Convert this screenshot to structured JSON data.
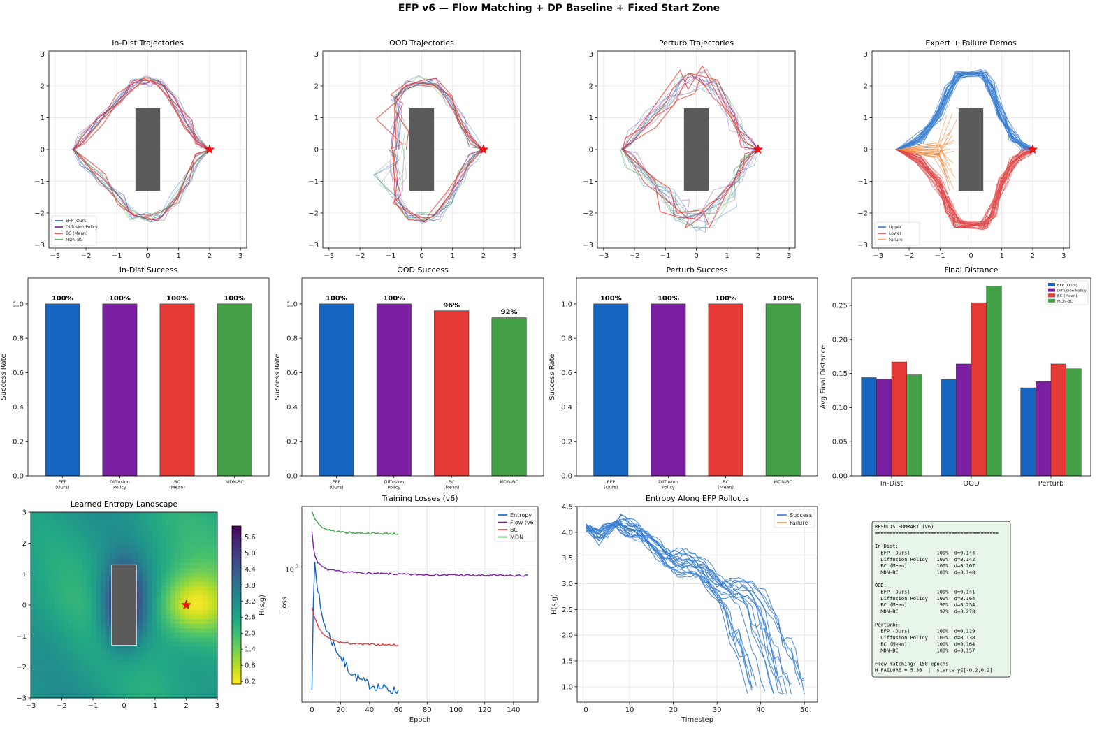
{
  "suptitle": "EFP v6 — Flow Matching + DP Baseline + Fixed Start Zone",
  "colors": {
    "efp": "#1565c0",
    "dp": "#7b1fa2",
    "bc": "#e53935",
    "mdn": "#43a047",
    "upper": "#3a7fd0",
    "lower": "#e04848",
    "failure": "#f28b40",
    "obstacle": "#5a5a5a",
    "goal": "#ff1010",
    "summary_bg": "#e8f5e9"
  },
  "chart_data": [
    {
      "id": "indist-traj",
      "type": "scatter",
      "title": "In-Dist Trajectories",
      "xlim": [
        -3.2,
        3.2
      ],
      "ylim": [
        -3.1,
        3.1
      ],
      "xticks": [
        -3,
        -2,
        -1,
        0,
        1,
        2,
        3
      ],
      "yticks": [
        -3,
        -2,
        -1,
        0,
        1,
        2,
        3
      ],
      "grid": true,
      "obstacle": {
        "x": [
          -0.4,
          0.4
        ],
        "y": [
          -1.3,
          1.3
        ]
      },
      "goal": [
        2.0,
        0.0
      ],
      "start_x": -2.4,
      "legend": [
        "EFP (Ours)",
        "Diffusion Policy",
        "BC (Mean)",
        "MDN-BC"
      ],
      "legend_pos": "lower-left"
    },
    {
      "id": "ood-traj",
      "type": "scatter",
      "title": "OOD Trajectories",
      "xlim": [
        -3.2,
        3.2
      ],
      "ylim": [
        -3.1,
        3.1
      ],
      "xticks": [
        -3,
        -2,
        -1,
        0,
        1,
        2,
        3
      ],
      "yticks": [
        -3,
        -2,
        -1,
        0,
        1,
        2,
        3
      ],
      "grid": true,
      "obstacle": {
        "x": [
          -0.4,
          0.4
        ],
        "y": [
          -1.3,
          1.3
        ]
      },
      "goal": [
        2.0,
        0.0
      ],
      "start_x": -0.8
    },
    {
      "id": "perturb-traj",
      "type": "scatter",
      "title": "Perturb Trajectories",
      "xlim": [
        -3.2,
        3.2
      ],
      "ylim": [
        -3.1,
        3.1
      ],
      "xticks": [
        -3,
        -2,
        -1,
        0,
        1,
        2,
        3
      ],
      "yticks": [
        -3,
        -2,
        -1,
        0,
        1,
        2,
        3
      ],
      "grid": true,
      "obstacle": {
        "x": [
          -0.4,
          0.4
        ],
        "y": [
          -1.3,
          1.3
        ]
      },
      "goal": [
        2.0,
        0.0
      ],
      "start_x": -2.4
    },
    {
      "id": "demos",
      "type": "scatter",
      "title": "Expert + Failure Demos",
      "xlim": [
        -3.2,
        3.2
      ],
      "ylim": [
        -3.1,
        3.1
      ],
      "xticks": [
        -3,
        -2,
        -1,
        0,
        1,
        2,
        3
      ],
      "yticks": [
        -3,
        -2,
        -1,
        0,
        1,
        2,
        3
      ],
      "grid": true,
      "obstacle": {
        "x": [
          -0.4,
          0.4
        ],
        "y": [
          -1.3,
          1.3
        ]
      },
      "goal": [
        2.0,
        0.0
      ],
      "legend": [
        "Upper",
        "Lower",
        "Failure"
      ],
      "legend_pos": "lower-left"
    },
    {
      "id": "indist-success",
      "type": "bar",
      "title": "In-Dist Success",
      "ylabel": "Success Rate",
      "ylim": [
        0,
        1.15
      ],
      "yticks": [
        0.0,
        0.2,
        0.4,
        0.6,
        0.8,
        1.0
      ],
      "categories": [
        [
          "EFP",
          "(Ours)"
        ],
        [
          "Diffusion",
          "Policy"
        ],
        [
          "BC",
          "(Mean)"
        ],
        [
          "MDN-BC"
        ]
      ],
      "values": [
        1.0,
        1.0,
        1.0,
        1.0
      ],
      "labels": [
        "100%",
        "100%",
        "100%",
        "100%"
      ]
    },
    {
      "id": "ood-success",
      "type": "bar",
      "title": "OOD Success",
      "ylabel": "Success Rate",
      "ylim": [
        0,
        1.15
      ],
      "yticks": [
        0.0,
        0.2,
        0.4,
        0.6,
        0.8,
        1.0
      ],
      "categories": [
        [
          "EFP",
          "(Ours)"
        ],
        [
          "Diffusion",
          "Policy"
        ],
        [
          "BC",
          "(Mean)"
        ],
        [
          "MDN-BC"
        ]
      ],
      "values": [
        1.0,
        1.0,
        0.96,
        0.92
      ],
      "labels": [
        "100%",
        "100%",
        "96%",
        "92%"
      ]
    },
    {
      "id": "perturb-success",
      "type": "bar",
      "title": "Perturb Success",
      "ylabel": "Success Rate",
      "ylim": [
        0,
        1.15
      ],
      "yticks": [
        0.0,
        0.2,
        0.4,
        0.6,
        0.8,
        1.0
      ],
      "categories": [
        [
          "EFP",
          "(Ours)"
        ],
        [
          "Diffusion",
          "Policy"
        ],
        [
          "BC",
          "(Mean)"
        ],
        [
          "MDN-BC"
        ]
      ],
      "values": [
        1.0,
        1.0,
        1.0,
        1.0
      ],
      "labels": [
        "100%",
        "100%",
        "100%",
        "100%"
      ]
    },
    {
      "id": "final-distance",
      "type": "bar",
      "title": "Final Distance",
      "ylabel": "Avg Final Distance",
      "ylim": [
        0,
        0.29
      ],
      "yticks": [
        0.0,
        0.05,
        0.1,
        0.15,
        0.2,
        0.25
      ],
      "categories": [
        "In-Dist",
        "OOD",
        "Perturb"
      ],
      "series": [
        {
          "name": "EFP (Ours)",
          "values": [
            0.144,
            0.141,
            0.129
          ]
        },
        {
          "name": "Diffusion Policy",
          "values": [
            0.142,
            0.164,
            0.138
          ]
        },
        {
          "name": "BC (Mean)",
          "values": [
            0.167,
            0.254,
            0.164
          ]
        },
        {
          "name": "MDN-BC",
          "values": [
            0.148,
            0.278,
            0.157
          ]
        }
      ],
      "legend_pos": "top-right"
    },
    {
      "id": "entropy-landscape",
      "type": "heatmap",
      "title": "Learned Entropy Landscape",
      "xlim": [
        -3,
        3
      ],
      "ylim": [
        -3,
        3
      ],
      "xticks": [
        -3,
        -2,
        -1,
        0,
        1,
        2,
        3
      ],
      "yticks": [
        -3,
        -2,
        -1,
        0,
        1,
        2,
        3
      ],
      "colorbar_label": "H(s,g)",
      "colorbar_ticks": [
        0.2,
        0.8,
        1.4,
        2.0,
        2.6,
        3.2,
        3.8,
        4.4,
        5.0,
        5.6
      ],
      "colorbar_range": [
        0.1,
        6.0
      ],
      "obstacle": {
        "x": [
          -0.4,
          0.4
        ],
        "y": [
          -1.3,
          1.3
        ]
      },
      "goal": [
        2.0,
        0.0
      ]
    },
    {
      "id": "training-losses",
      "type": "line",
      "title": "Training Losses (v6)",
      "xlabel": "Epoch",
      "ylabel": "Loss",
      "xlim": [
        -7,
        157
      ],
      "log_y": true,
      "ylim": [
        0.17,
        2.3
      ],
      "xticks": [
        0,
        20,
        40,
        60,
        80,
        100,
        120,
        140
      ],
      "ytick_label": "10",
      "ytick_sup": "0",
      "legend_pos": "top-right",
      "series": [
        {
          "name": "Entropy",
          "x": [
            0,
            2,
            4,
            6,
            8,
            10,
            14,
            18,
            22,
            26,
            30,
            35,
            40,
            45,
            50,
            55,
            60
          ],
          "y": [
            0.2,
            1.1,
            0.78,
            0.58,
            0.5,
            0.45,
            0.38,
            0.33,
            0.29,
            0.26,
            0.24,
            0.225,
            0.215,
            0.21,
            0.205,
            0.2,
            0.198
          ]
        },
        {
          "name": "Flow (v6)",
          "x": [
            0,
            1,
            2,
            4,
            6,
            8,
            10,
            15,
            20,
            30,
            40,
            50,
            60,
            70,
            80,
            90,
            100,
            110,
            120,
            130,
            140,
            150
          ],
          "y": [
            1.65,
            1.35,
            1.2,
            1.1,
            1.05,
            1.02,
            1.0,
            0.98,
            0.965,
            0.955,
            0.945,
            0.94,
            0.935,
            0.93,
            0.93,
            0.925,
            0.925,
            0.92,
            0.92,
            0.92,
            0.918,
            0.917
          ]
        },
        {
          "name": "BC",
          "x": [
            0,
            2,
            4,
            6,
            8,
            10,
            14,
            18,
            22,
            26,
            30,
            35,
            40,
            45,
            50,
            55,
            60
          ],
          "y": [
            0.6,
            0.52,
            0.47,
            0.44,
            0.42,
            0.405,
            0.39,
            0.38,
            0.375,
            0.372,
            0.37,
            0.368,
            0.367,
            0.366,
            0.365,
            0.364,
            0.364
          ]
        },
        {
          "name": "MDN",
          "x": [
            0,
            2,
            4,
            6,
            8,
            10,
            15,
            20,
            25,
            30,
            35,
            40,
            45,
            50,
            55,
            60
          ],
          "y": [
            2.15,
            1.95,
            1.85,
            1.78,
            1.73,
            1.7,
            1.66,
            1.64,
            1.63,
            1.62,
            1.615,
            1.61,
            1.607,
            1.605,
            1.603,
            1.6
          ]
        }
      ]
    },
    {
      "id": "entropy-rollouts",
      "type": "line",
      "title": "Entropy Along EFP Rollouts",
      "xlabel": "Timestep",
      "ylabel": "H(s,g)",
      "xlim": [
        -2,
        53
      ],
      "ylim": [
        0.7,
        4.5
      ],
      "xticks": [
        0,
        10,
        20,
        30,
        40,
        50
      ],
      "yticks": [
        1.0,
        1.5,
        2.0,
        2.5,
        3.0,
        3.5,
        4.0,
        4.5
      ],
      "legend": [
        "Success",
        "Failure"
      ],
      "legend_pos": "top-right",
      "series_templates": [
        {
          "name": "Success",
          "x": [
            0,
            3,
            6,
            8,
            10,
            14,
            20,
            25,
            30,
            34,
            38,
            40,
            42,
            44,
            45,
            46,
            47
          ],
          "y": [
            4.0,
            3.9,
            4.2,
            4.3,
            4.1,
            3.85,
            3.6,
            3.35,
            3.1,
            2.95,
            2.75,
            2.5,
            2.2,
            1.8,
            1.5,
            1.2,
            1.0
          ]
        }
      ]
    }
  ],
  "summary": {
    "lines": [
      "RESULTS SUMMARY (v6)",
      "==========================================",
      "",
      "In-Dist:",
      "  EFP (Ours)         100%  d=0.144",
      "  Diffusion Policy   100%  d=0.142",
      "  BC (Mean)          100%  d=0.167",
      "  MDN-BC             100%  d=0.148",
      "",
      "OOD:",
      "  EFP (Ours)         100%  d=0.141",
      "  Diffusion Policy   100%  d=0.164",
      "  BC (Mean)           96%  d=0.254",
      "  MDN-BC              92%  d=0.278",
      "",
      "Perturb:",
      "  EFP (Ours)         100%  d=0.129",
      "  Diffusion Policy   100%  d=0.138",
      "  BC (Mean)          100%  d=0.164",
      "  MDN-BC             100%  d=0.157",
      "",
      "Flow matching: 150 epochs",
      "H_FAILURE = 5.30  |  starts y∈[-0.2,0.2]"
    ]
  }
}
